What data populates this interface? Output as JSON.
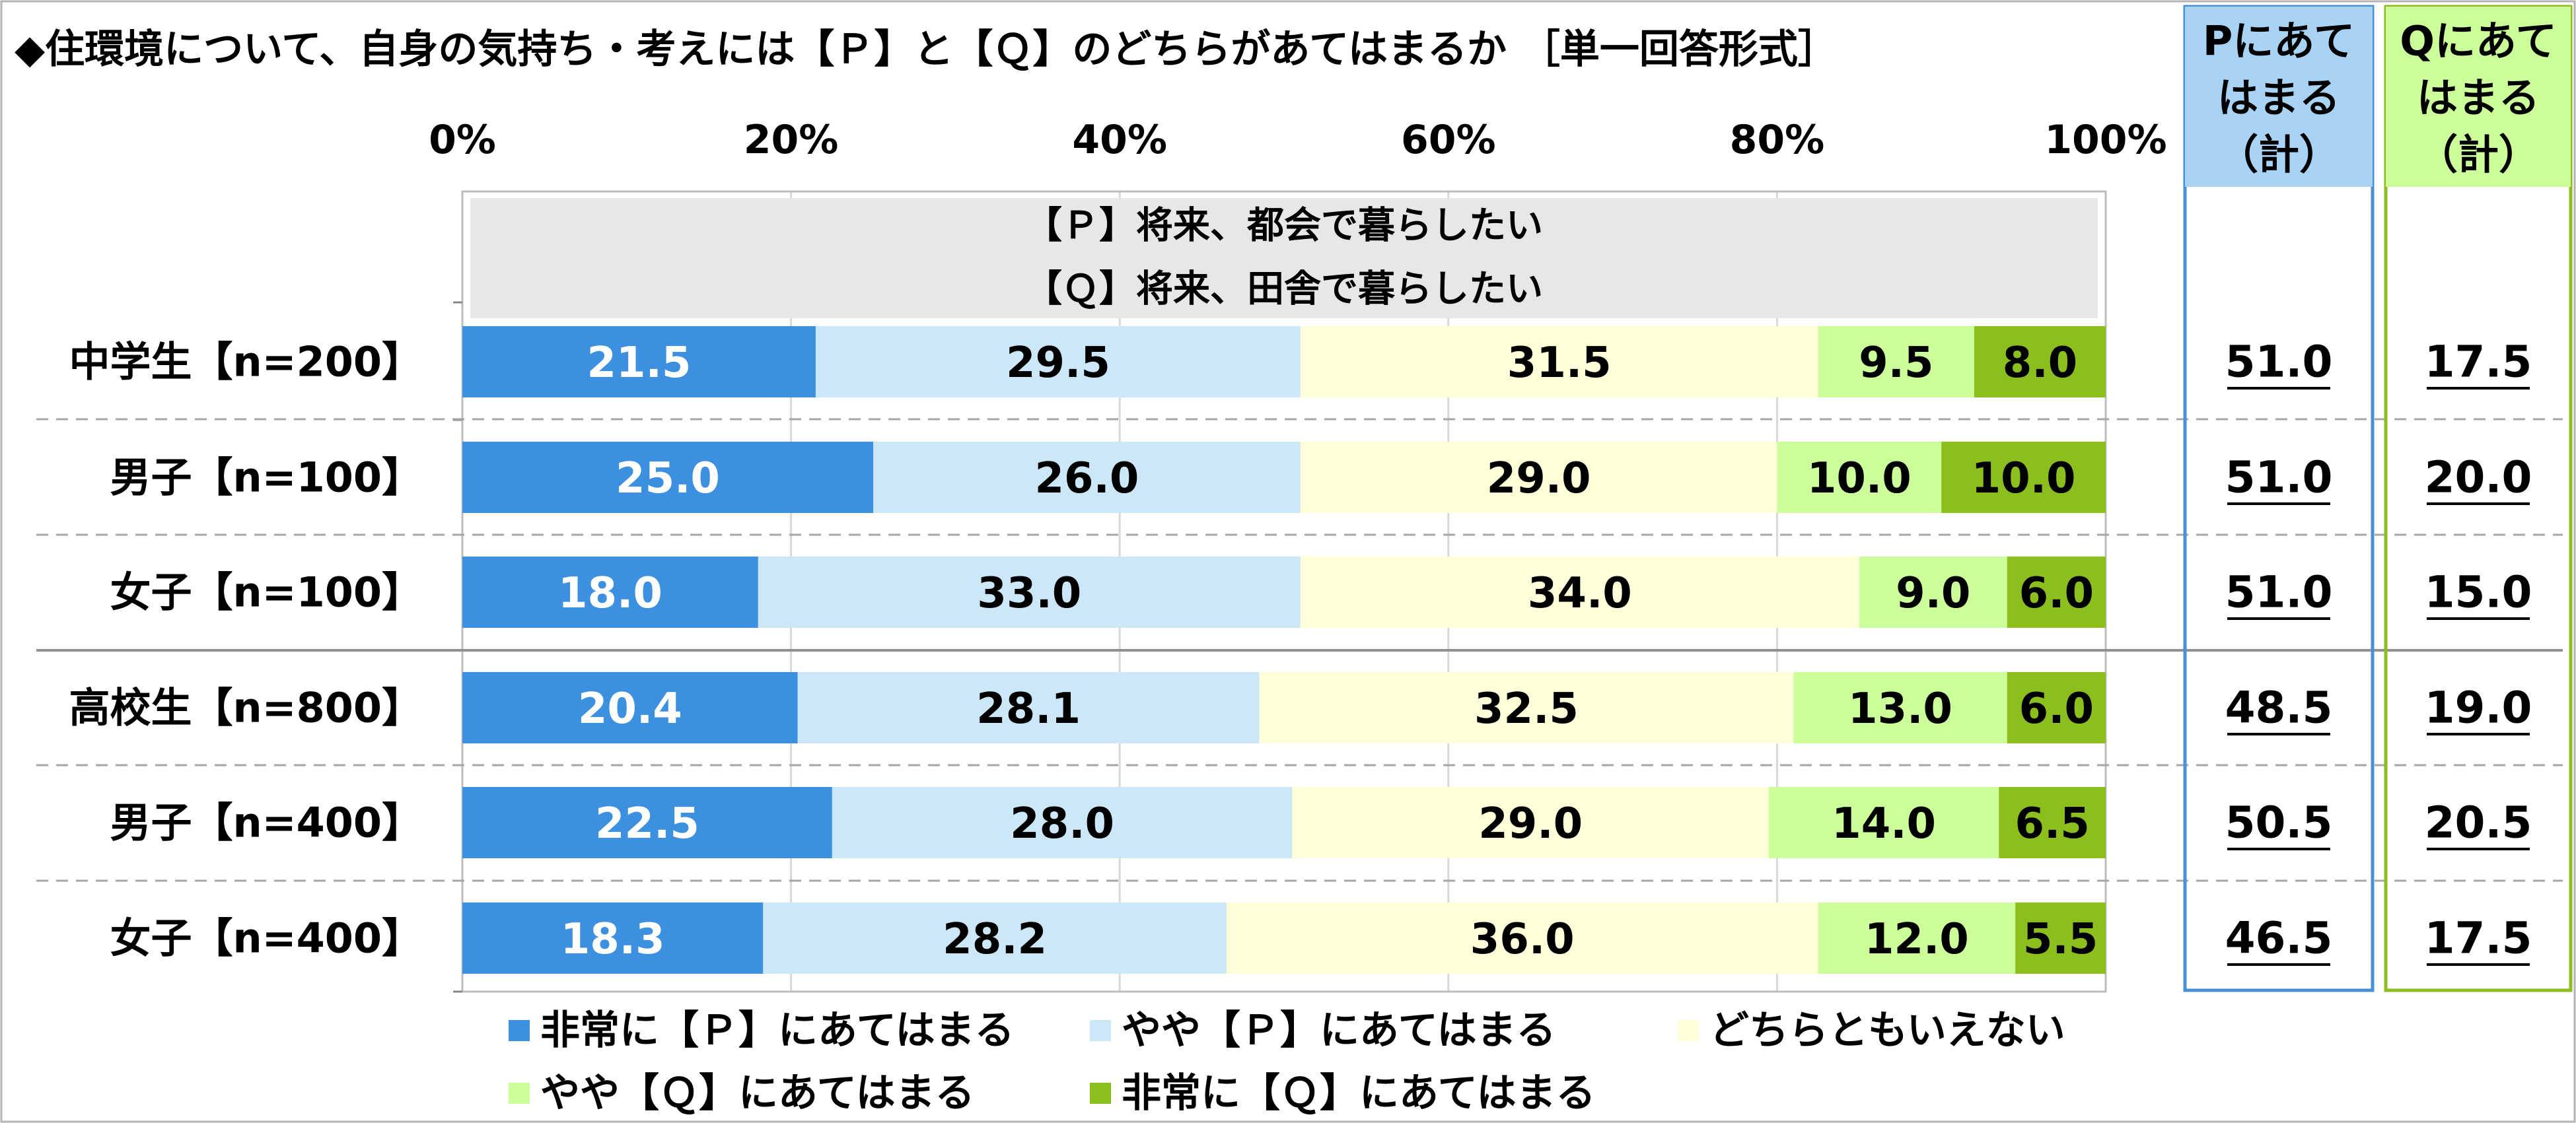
{
  "chart_data": {
    "type": "bar",
    "orientation": "horizontal",
    "stacked": true,
    "title": "◆住環境について、自身の気持ち・考えには【Ｐ】と【Ｑ】のどちらがあてはまるか ［単一回答形式］",
    "statement_p": "【Ｐ】将来、都会で暮らしたい",
    "statement_q": "【Ｑ】将来、田舎で暮らしたい",
    "xlim": [
      0,
      100
    ],
    "x_ticks": [
      "0%",
      "20%",
      "40%",
      "60%",
      "80%",
      "100%"
    ],
    "categories": [
      "中学生【n=200】",
      "男子【n=100】",
      "女子【n=100】",
      "高校生【n=800】",
      "男子【n=400】",
      "女子【n=400】"
    ],
    "series": [
      {
        "name": "非常に【Ｐ】にあてはまる",
        "color": "#3D8FE0",
        "label_color": "#ffffff",
        "values": [
          21.5,
          25.0,
          18.0,
          20.4,
          22.5,
          18.3
        ],
        "labels": [
          "21.5",
          "25.0",
          "18.0",
          "20.4",
          "22.5",
          "18.3"
        ]
      },
      {
        "name": "やや【Ｐ】にあてはまる",
        "color": "#CCE8F8",
        "label_color": "#000000",
        "values": [
          29.5,
          26.0,
          33.0,
          28.1,
          28.0,
          28.2
        ],
        "labels": [
          "29.5",
          "26.0",
          "33.0",
          "28.1",
          "28.0",
          "28.2"
        ]
      },
      {
        "name": "どちらともいえない",
        "color": "#FFFFD9",
        "label_color": "#000000",
        "values": [
          31.5,
          29.0,
          34.0,
          32.5,
          29.0,
          36.0
        ],
        "labels": [
          "31.5",
          "29.0",
          "34.0",
          "32.5",
          "29.0",
          "36.0"
        ]
      },
      {
        "name": "やや【Ｑ】にあてはまる",
        "color": "#CCFF99",
        "label_color": "#000000",
        "values": [
          9.5,
          10.0,
          9.0,
          13.0,
          14.0,
          12.0
        ],
        "labels": [
          "9.5",
          "10.0",
          "9.0",
          "13.0",
          "14.0",
          "12.0"
        ]
      },
      {
        "name": "非常に【Ｑ】にあてはまる",
        "color": "#8CBE1E",
        "label_color": "#000000",
        "values": [
          8.0,
          10.0,
          6.0,
          6.0,
          6.5,
          5.5
        ],
        "labels": [
          "8.0",
          "10.0",
          "6.0",
          "6.0",
          "6.5",
          "5.5"
        ]
      }
    ],
    "totals": [
      {
        "header": [
          "Pにあて",
          "はまる",
          "（計）"
        ],
        "color": "#4A90D9",
        "header_bg": "#A9D3F5",
        "values": [
          "51.0",
          "51.0",
          "51.0",
          "48.5",
          "50.5",
          "46.5"
        ]
      },
      {
        "header": [
          "Qにあて",
          "はまる",
          "（計）"
        ],
        "color": "#8CBE1E",
        "header_bg": "#CCFF99",
        "values": [
          "17.5",
          "20.0",
          "15.0",
          "19.0",
          "20.5",
          "17.5"
        ]
      }
    ],
    "legend_position": "bottom",
    "grid": true
  }
}
